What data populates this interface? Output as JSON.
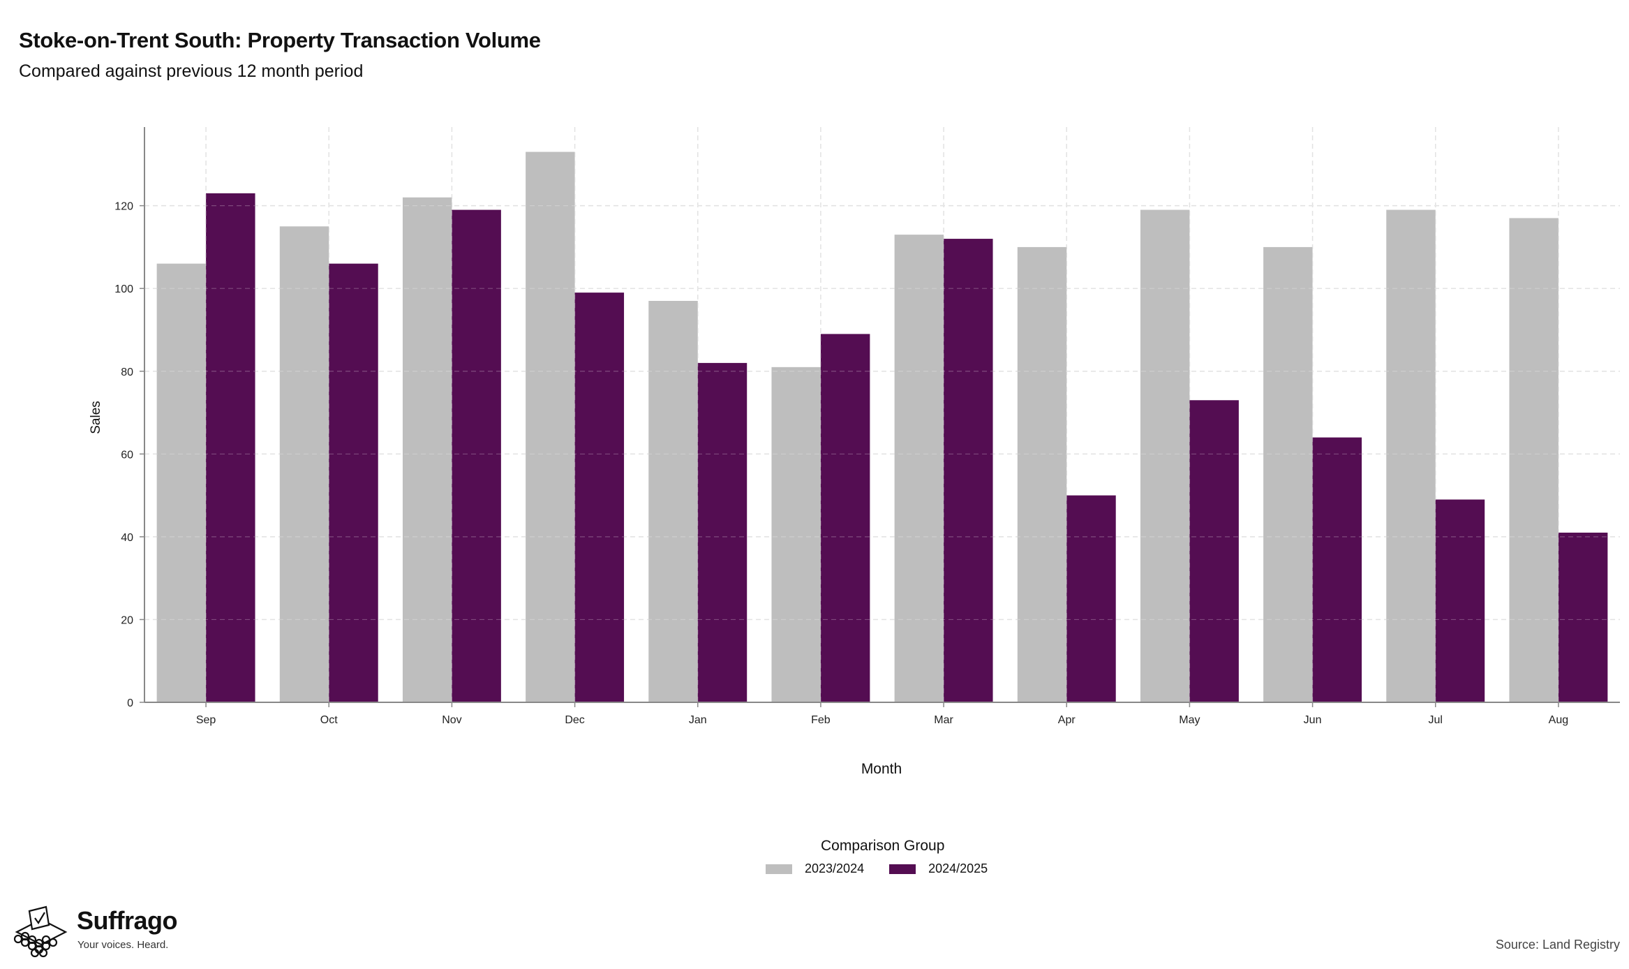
{
  "header": {
    "title": "Stoke-on-Trent South: Property Transaction Volume",
    "subtitle": "Compared against previous 12 month period"
  },
  "chart_data": {
    "type": "bar",
    "categories": [
      "Sep",
      "Oct",
      "Nov",
      "Dec",
      "Jan",
      "Feb",
      "Mar",
      "Apr",
      "May",
      "Jun",
      "Jul",
      "Aug"
    ],
    "series": [
      {
        "name": "2023/2024",
        "color": "#bebebe",
        "values": [
          106,
          115,
          122,
          133,
          97,
          81,
          113,
          110,
          119,
          110,
          119,
          117
        ]
      },
      {
        "name": "2024/2025",
        "color": "#540d52",
        "values": [
          123,
          106,
          119,
          99,
          82,
          89,
          112,
          50,
          73,
          64,
          49,
          41
        ]
      }
    ],
    "xlabel": "Month",
    "ylabel": "Sales",
    "ylim": [
      0,
      139
    ],
    "yticks": [
      0,
      20,
      40,
      60,
      80,
      100,
      120
    ],
    "grid": true,
    "legend_title": "Comparison Group",
    "legend_position": "bottom"
  },
  "footer": {
    "brand": "Suffrago",
    "tagline": "Your voices. Heard.",
    "source": "Source: Land Registry"
  }
}
